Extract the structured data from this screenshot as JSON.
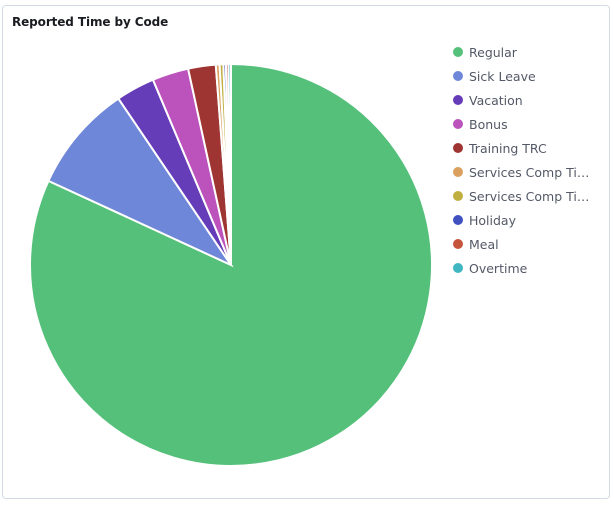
{
  "panel": {
    "title": "Reported Time by Code"
  },
  "chart_data": {
    "type": "pie",
    "title": "Reported Time by Code",
    "legend_position": "right",
    "slices": [
      {
        "label": "Regular",
        "value": 81.3,
        "color": "#54c07a"
      },
      {
        "label": "Sick Leave",
        "value": 8.6,
        "color": "#6f87d8"
      },
      {
        "label": "Vacation",
        "value": 3.1,
        "color": "#663db8"
      },
      {
        "label": "Bonus",
        "value": 2.9,
        "color": "#bc52bc"
      },
      {
        "label": "Training TRC",
        "value": 2.2,
        "color": "#9e3533"
      },
      {
        "label": "Services Comp Time...",
        "value": 0.3,
        "color": "#daa05d"
      },
      {
        "label": "Services Comp Time...",
        "value": 0.3,
        "color": "#bfaf40"
      },
      {
        "label": "Holiday",
        "value": 0.2,
        "color": "#4050bf"
      },
      {
        "label": "Meal",
        "value": 0.2,
        "color": "#c5543d"
      },
      {
        "label": "Overtime",
        "value": 0.2,
        "color": "#40b6c3"
      }
    ]
  }
}
